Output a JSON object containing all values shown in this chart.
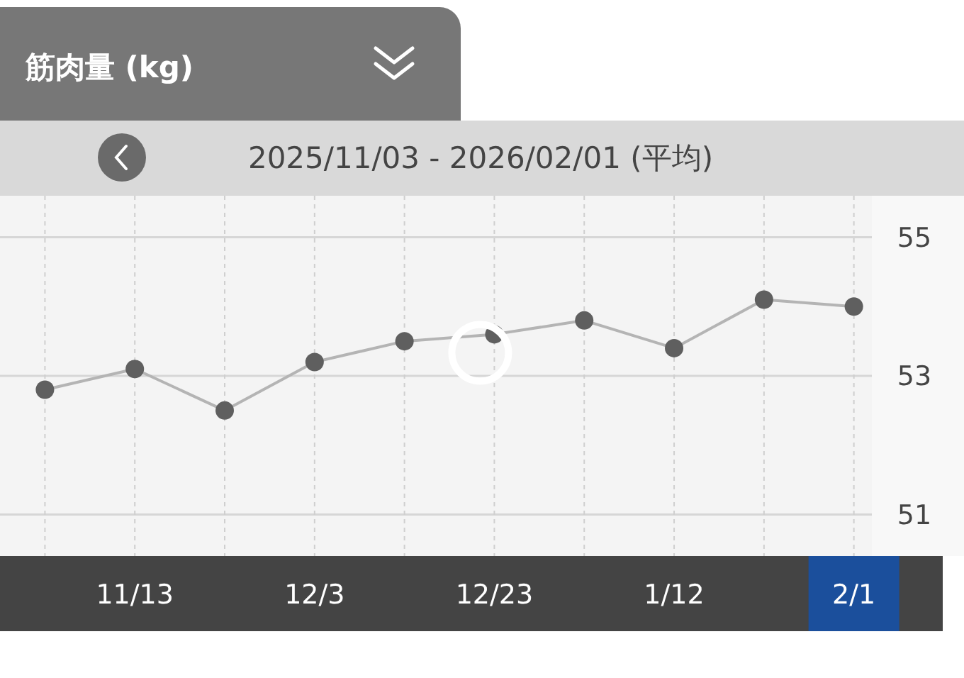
{
  "chart_data": {
    "type": "line",
    "title": "筋肉量 (kg)",
    "subtitle": "2025/11/03 - 2026/02/01 (平均)",
    "x": [
      "2025-11-03",
      "2025-11-13",
      "2025-11-23",
      "2025-12-03",
      "2025-12-13",
      "2025-12-23",
      "2026-01-02",
      "2026-01-12",
      "2026-01-22",
      "2026-02-01"
    ],
    "series": [
      {
        "color": "#5f5f5f",
        "values": [
          52.8,
          53.1,
          52.5,
          53.2,
          53.5,
          53.6,
          53.8,
          53.4,
          54.1,
          54.0
        ]
      }
    ],
    "xlim": [
      "2025-10-29",
      "2026-02-03"
    ],
    "xticks": [
      {
        "value": "2025-11-03",
        "label": null
      },
      {
        "value": "2025-11-13",
        "label": "11/13"
      },
      {
        "value": "2025-11-23",
        "label": null
      },
      {
        "value": "2025-12-03",
        "label": "12/3"
      },
      {
        "value": "2025-12-13",
        "label": null
      },
      {
        "value": "2025-12-23",
        "label": "12/23"
      },
      {
        "value": "2026-01-02",
        "label": null
      },
      {
        "value": "2026-01-12",
        "label": "1/12"
      },
      {
        "value": "2026-01-22",
        "label": null
      },
      {
        "value": "2026-02-01",
        "label": "2/1"
      }
    ],
    "ylim": [
      50.4,
      55.6
    ],
    "yticks": [
      51,
      53,
      55
    ],
    "grid": true,
    "marker": "circle"
  }
}
